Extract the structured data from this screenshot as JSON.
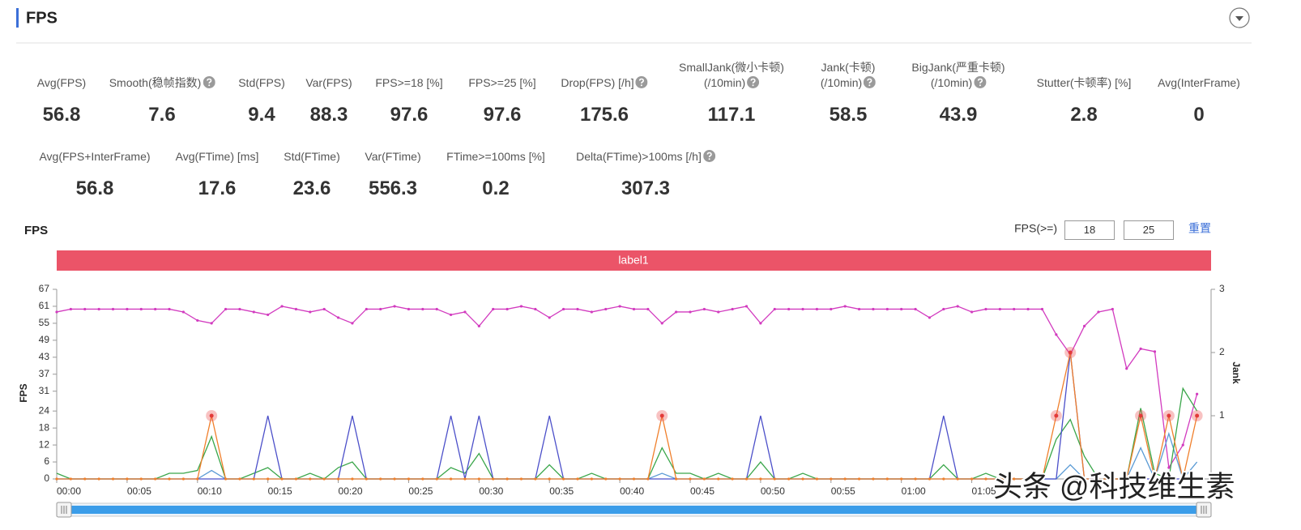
{
  "header": {
    "title": "FPS"
  },
  "metrics": [
    {
      "label": [
        "Avg(FPS)"
      ],
      "value": 56.8
    },
    {
      "label": [
        "Smooth(稳帧指数)"
      ],
      "value": 7.6,
      "help": true
    },
    {
      "label": [
        "Std(FPS)"
      ],
      "value": 9.4
    },
    {
      "label": [
        "Var(FPS)"
      ],
      "value": 88.3
    },
    {
      "label": [
        "FPS>=18 [%]"
      ],
      "value": 97.6
    },
    {
      "label": [
        "FPS>=25 [%]"
      ],
      "value": 97.6
    },
    {
      "label": [
        "Drop(FPS) [/h]"
      ],
      "value": 175.6,
      "help": true
    },
    {
      "label": [
        "SmallJank(微小卡顿)",
        "(/10min)"
      ],
      "value": 117.1,
      "help": true
    },
    {
      "label": [
        "Jank(卡顿)",
        "(/10min)"
      ],
      "value": 58.5,
      "help": true
    },
    {
      "label": [
        "BigJank(严重卡顿)",
        "(/10min)"
      ],
      "value": 43.9,
      "help": true
    },
    {
      "label": [
        "Stutter(卡顿率) [%]"
      ],
      "value": 2.8
    },
    {
      "label": [
        "Avg(InterFrame)"
      ],
      "value": 0
    },
    {
      "label": [
        "Avg(FPS+InterFrame)"
      ],
      "value": 56.8
    },
    {
      "label": [
        "Avg(FTime) [ms]"
      ],
      "value": 17.6
    },
    {
      "label": [
        "Std(FTime)"
      ],
      "value": 23.6
    },
    {
      "label": [
        "Var(FTime)"
      ],
      "value": 556.3
    },
    {
      "label": [
        "FTime>=100ms [%]"
      ],
      "value": 0.2
    },
    {
      "label": [
        "Delta(FTime)>100ms [/h]"
      ],
      "value": 307.3,
      "help": true
    }
  ],
  "chart_data": {
    "type": "line",
    "title": "FPS",
    "filter": {
      "label": "FPS(>=)",
      "values": [
        18,
        25
      ],
      "reset": "重置"
    },
    "band_label": "label1",
    "ylabel": "FPS",
    "y2label": "Jank",
    "x": [
      0,
      1,
      2,
      3,
      4,
      5,
      6,
      7,
      8,
      9,
      10,
      11,
      12,
      13,
      14,
      15,
      16,
      17,
      18,
      19,
      20,
      21,
      22,
      23,
      24,
      25,
      26,
      27,
      28,
      29,
      30,
      31,
      32,
      33,
      34,
      35,
      36,
      37,
      38,
      39,
      40,
      41,
      42,
      43,
      44,
      45,
      46,
      47,
      48,
      49,
      50,
      51,
      52,
      53,
      54,
      55,
      56,
      57,
      58,
      59,
      60,
      61,
      62,
      63,
      64,
      65,
      66,
      67,
      68,
      69,
      70,
      71,
      72,
      73,
      74,
      75,
      76,
      77,
      78,
      79,
      80,
      81
    ],
    "xlim": [
      0,
      82
    ],
    "xticks": [
      {
        "value": 0,
        "label": "00:00"
      },
      {
        "value": 5,
        "label": "00:05"
      },
      {
        "value": 10,
        "label": "00:10"
      },
      {
        "value": 15,
        "label": "00:15"
      },
      {
        "value": 20,
        "label": "00:20"
      },
      {
        "value": 25,
        "label": "00:25"
      },
      {
        "value": 30,
        "label": "00:30"
      },
      {
        "value": 35,
        "label": "00:35"
      },
      {
        "value": 40,
        "label": "00:40"
      },
      {
        "value": 45,
        "label": "00:45"
      },
      {
        "value": 50,
        "label": "00:50"
      },
      {
        "value": 55,
        "label": "00:55"
      },
      {
        "value": 60,
        "label": "01:00"
      },
      {
        "value": 65,
        "label": "01:05"
      }
    ],
    "ylim": [
      0,
      67
    ],
    "yticks": [
      0,
      6,
      12,
      18,
      24,
      31,
      37,
      43,
      49,
      55,
      61,
      67
    ],
    "y2lim": [
      0,
      3
    ],
    "y2ticks": [
      1,
      2,
      3
    ],
    "series": [
      {
        "color": "#d23bbf",
        "dots": true,
        "values": [
          59,
          60,
          60,
          60,
          60,
          60,
          60,
          60,
          60,
          59,
          56,
          55,
          60,
          60,
          59,
          58,
          61,
          60,
          59,
          60,
          57,
          55,
          60,
          60,
          61,
          60,
          60,
          60,
          58,
          59,
          54,
          60,
          60,
          61,
          60,
          57,
          60,
          60,
          59,
          60,
          61,
          60,
          60,
          55,
          59,
          59,
          60,
          59,
          60,
          61,
          55,
          60,
          60,
          60,
          60,
          60,
          61,
          60,
          60,
          60,
          60,
          60,
          57,
          60,
          61,
          59,
          60,
          60,
          60,
          60,
          60,
          51,
          44,
          54,
          59,
          60,
          39,
          46,
          45,
          4,
          12,
          30
        ]
      },
      {
        "color": "#5b9bd5",
        "values": [
          0,
          0,
          0,
          0,
          0,
          0,
          0,
          0,
          0,
          0,
          0,
          3,
          0,
          0,
          0,
          0,
          0,
          0,
          0,
          0,
          0,
          0,
          0,
          0,
          0,
          0,
          0,
          0,
          0,
          0,
          0,
          0,
          0,
          0,
          0,
          0,
          0,
          0,
          0,
          0,
          0,
          0,
          0,
          2,
          0,
          0,
          0,
          0,
          0,
          0,
          0,
          0,
          0,
          0,
          0,
          0,
          0,
          0,
          0,
          0,
          0,
          0,
          0,
          0,
          0,
          0,
          0,
          0,
          0,
          0,
          0,
          0,
          5,
          0,
          0,
          0,
          0,
          11,
          0,
          16,
          0,
          6
        ]
      },
      {
        "color": "#3aa64a",
        "values": [
          2,
          0,
          0,
          0,
          0,
          0,
          0,
          0,
          2,
          2,
          3,
          15,
          0,
          0,
          2,
          4,
          0,
          0,
          2,
          0,
          4,
          6,
          0,
          0,
          0,
          0,
          0,
          0,
          4,
          2,
          9,
          0,
          0,
          0,
          0,
          5,
          0,
          0,
          2,
          0,
          0,
          0,
          0,
          11,
          2,
          2,
          0,
          2,
          0,
          0,
          6,
          0,
          0,
          2,
          0,
          0,
          0,
          0,
          0,
          0,
          0,
          0,
          0,
          5,
          0,
          0,
          2,
          0,
          0,
          0,
          0,
          14,
          21,
          8,
          0,
          0,
          0,
          25,
          2,
          0,
          32,
          24
        ]
      },
      {
        "color": "#4b4fc9",
        "axis": "y2",
        "values": [
          0,
          0,
          0,
          0,
          0,
          0,
          0,
          0,
          0,
          0,
          0,
          0,
          0,
          0,
          0,
          1,
          0,
          0,
          0,
          0,
          0,
          1,
          0,
          0,
          0,
          0,
          0,
          0,
          1,
          0,
          1,
          0,
          0,
          0,
          0,
          1,
          0,
          0,
          0,
          0,
          0,
          0,
          0,
          0,
          0,
          0,
          0,
          0,
          0,
          0,
          1,
          0,
          0,
          0,
          0,
          0,
          0,
          0,
          0,
          0,
          0,
          0,
          0,
          1,
          0,
          0,
          0,
          0,
          0,
          0,
          0,
          0,
          2,
          0,
          0,
          0,
          0,
          0,
          0,
          0,
          0,
          0
        ]
      },
      {
        "color": "#f07f2b",
        "axis": "y2",
        "dots": true,
        "highlight": true,
        "values": [
          0,
          0,
          0,
          0,
          0,
          0,
          0,
          0,
          0,
          0,
          0,
          1,
          0,
          0,
          0,
          0,
          0,
          0,
          0,
          0,
          0,
          0,
          0,
          0,
          0,
          0,
          0,
          0,
          0,
          0,
          0,
          0,
          0,
          0,
          0,
          0,
          0,
          0,
          0,
          0,
          0,
          0,
          0,
          1,
          0,
          0,
          0,
          0,
          0,
          0,
          0,
          0,
          0,
          0,
          0,
          0,
          0,
          0,
          0,
          0,
          0,
          0,
          0,
          0,
          0,
          0,
          0,
          0,
          0,
          0,
          0,
          1,
          2,
          0,
          0,
          0,
          0,
          1,
          0,
          1,
          0,
          1
        ]
      }
    ]
  },
  "watermark": "头条 @科技维生素"
}
